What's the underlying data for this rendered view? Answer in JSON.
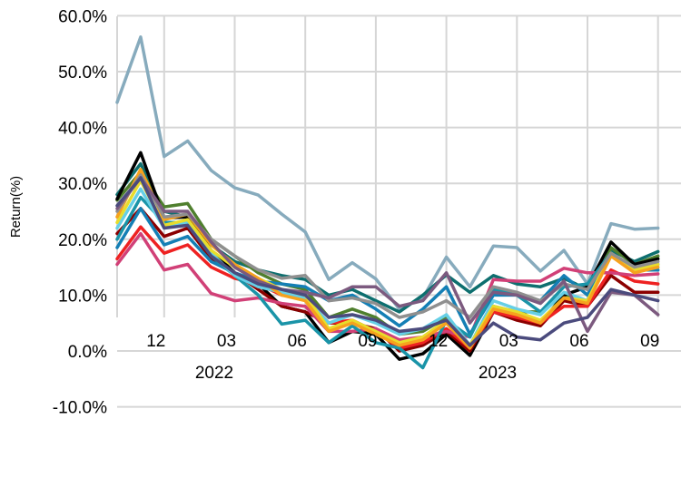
{
  "chart_data": {
    "type": "line",
    "title": "",
    "xlabel": "",
    "ylabel": "Return(%)",
    "ylim": [
      -10,
      60
    ],
    "yticks": [
      -10,
      0,
      10,
      20,
      30,
      40,
      50,
      60
    ],
    "ytick_labels": [
      "-10.0%",
      "0.0%",
      "10.0%",
      "20.0%",
      "30.0%",
      "40.0%",
      "50.0%",
      "60.0%"
    ],
    "x": [
      "2021-10",
      "2021-11",
      "2021-12",
      "2022-01",
      "2022-02",
      "2022-03",
      "2022-04",
      "2022-05",
      "2022-06",
      "2022-07",
      "2022-08",
      "2022-09",
      "2022-10",
      "2022-11",
      "2022-12",
      "2023-01",
      "2023-02",
      "2023-03",
      "2023-04",
      "2023-05",
      "2023-06",
      "2023-07",
      "2023-08",
      "2023-09"
    ],
    "xtick_labels": [
      "12",
      "03",
      "06",
      "09",
      "12",
      "03",
      "06",
      "09"
    ],
    "year_labels": [
      "2022",
      "2023"
    ],
    "grid": true,
    "legend": "none",
    "series": [
      {
        "color": "#87abbd",
        "values": [
          44.5,
          56.2,
          34.8,
          37.6,
          32.3,
          29.2,
          27.9,
          24.5,
          21.3,
          12.8,
          15.8,
          12.9,
          7.5,
          9.5,
          16.8,
          11.5,
          18.8,
          18.5,
          14.3,
          18.0,
          12.0,
          22.8,
          21.8,
          22.0
        ]
      },
      {
        "color": "#0e6f6f",
        "values": [
          28.0,
          33.5,
          25.0,
          24.0,
          19.0,
          16.0,
          14.5,
          13.5,
          12.8,
          10.0,
          11.0,
          9.0,
          7.0,
          10.0,
          13.6,
          10.5,
          13.5,
          12.0,
          11.5,
          13.0,
          11.0,
          18.0,
          16.0,
          17.8
        ]
      },
      {
        "color": "#4f7f2e",
        "values": [
          27.0,
          32.0,
          25.8,
          26.4,
          20.0,
          17.0,
          14.0,
          12.0,
          11.0,
          6.0,
          7.5,
          6.0,
          3.0,
          3.5,
          6.0,
          1.0,
          8.0,
          7.0,
          7.0,
          10.0,
          9.0,
          18.5,
          15.5,
          17.0
        ]
      },
      {
        "color": "#000000",
        "values": [
          27.2,
          35.5,
          23.8,
          24.0,
          18.0,
          14.0,
          12.0,
          8.0,
          7.0,
          1.5,
          3.5,
          3.0,
          -1.5,
          -0.5,
          3.0,
          -0.8,
          7.0,
          6.0,
          5.0,
          10.0,
          11.5,
          19.5,
          15.5,
          16.5
        ]
      },
      {
        "color": "#8b0000",
        "values": [
          21.0,
          25.5,
          20.5,
          22.0,
          16.5,
          14.0,
          11.0,
          8.0,
          7.0,
          5.0,
          5.0,
          4.0,
          0.0,
          1.0,
          3.5,
          0.0,
          7.0,
          5.5,
          4.5,
          9.0,
          8.0,
          13.5,
          10.5,
          10.5
        ]
      },
      {
        "color": "#ee2222",
        "values": [
          16.5,
          22.2,
          17.5,
          19.0,
          15.0,
          13.0,
          12.0,
          10.0,
          9.5,
          5.0,
          5.5,
          3.5,
          0.5,
          1.5,
          4.0,
          0.5,
          7.0,
          6.0,
          5.0,
          8.0,
          8.0,
          14.5,
          12.5,
          12.0
        ]
      },
      {
        "color": "#d14077",
        "values": [
          15.5,
          21.0,
          14.5,
          15.5,
          10.3,
          9.0,
          9.5,
          8.5,
          8.0,
          3.5,
          3.5,
          4.0,
          2.0,
          2.5,
          3.5,
          2.5,
          12.8,
          12.5,
          12.5,
          14.8,
          14.0,
          14.0,
          13.5,
          13.8
        ]
      },
      {
        "color": "#147fb5",
        "values": [
          18.5,
          25.5,
          19.0,
          20.5,
          16.0,
          14.0,
          12.5,
          12.0,
          11.5,
          9.0,
          10.0,
          7.5,
          4.5,
          7.5,
          11.5,
          3.0,
          10.0,
          10.0,
          9.0,
          13.5,
          10.0,
          17.5,
          14.5,
          14.5
        ]
      },
      {
        "color": "#1a94a8",
        "values": [
          20.0,
          27.5,
          23.0,
          23.0,
          17.0,
          13.5,
          10.0,
          4.8,
          5.5,
          1.5,
          4.5,
          1.5,
          0.5,
          -3.0,
          5.5,
          2.5,
          11.0,
          10.0,
          7.0,
          11.5,
          12.0,
          17.5,
          15.0,
          15.5
        ]
      },
      {
        "color": "#66cfe6",
        "values": [
          22.0,
          29.0,
          22.0,
          23.0,
          17.5,
          13.5,
          11.5,
          10.5,
          9.5,
          5.0,
          6.5,
          5.0,
          3.0,
          4.0,
          6.5,
          1.0,
          9.0,
          7.5,
          6.5,
          10.5,
          9.0,
          17.0,
          14.5,
          15.0
        ]
      },
      {
        "color": "#e8dc2c",
        "values": [
          23.0,
          30.5,
          22.5,
          23.5,
          18.0,
          15.0,
          13.0,
          11.0,
          10.0,
          4.0,
          5.5,
          3.5,
          1.5,
          2.5,
          5.5,
          1.0,
          8.0,
          7.0,
          5.5,
          9.5,
          9.0,
          17.5,
          14.5,
          15.5
        ]
      },
      {
        "color": "#f6a21e",
        "values": [
          24.0,
          32.5,
          23.5,
          24.5,
          19.0,
          15.5,
          13.0,
          10.0,
          9.0,
          3.5,
          5.0,
          3.0,
          1.0,
          2.0,
          5.0,
          0.5,
          7.5,
          6.5,
          5.0,
          9.5,
          8.5,
          17.0,
          14.0,
          15.0
        ]
      },
      {
        "color": "#8f8f8f",
        "values": [
          25.0,
          31.5,
          24.0,
          24.5,
          20.0,
          17.0,
          14.5,
          13.0,
          13.5,
          9.0,
          9.5,
          8.5,
          6.0,
          7.0,
          9.0,
          6.0,
          11.5,
          10.5,
          9.0,
          12.0,
          11.0,
          17.5,
          15.0,
          16.0
        ]
      },
      {
        "color": "#7c5a7f",
        "values": [
          25.5,
          31.0,
          25.0,
          25.0,
          19.5,
          15.0,
          12.5,
          11.0,
          10.5,
          9.5,
          11.5,
          11.5,
          8.0,
          9.0,
          14.0,
          5.0,
          10.5,
          10.0,
          8.5,
          12.5,
          3.5,
          10.5,
          10.0,
          6.5
        ]
      },
      {
        "color": "#4b4b7d",
        "values": [
          26.0,
          31.0,
          22.0,
          22.5,
          17.0,
          14.0,
          12.0,
          11.0,
          10.0,
          6.0,
          6.5,
          5.5,
          3.5,
          4.0,
          5.5,
          1.0,
          5.0,
          2.5,
          2.0,
          5.0,
          6.0,
          11.0,
          10.0,
          9.0
        ]
      }
    ]
  }
}
